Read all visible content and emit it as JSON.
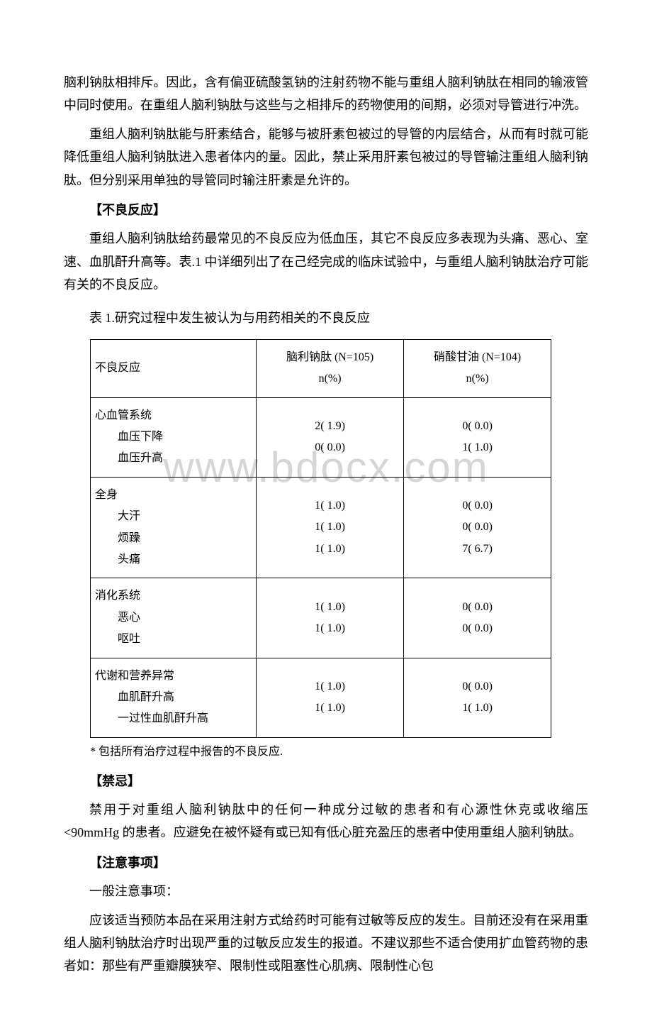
{
  "watermark": "www.bdocx.com",
  "paragraphs": {
    "p1": "脑利钠肽相排斥。因此，含有偏亚硫酸氢钠的注射药物不能与重组人脑利钠肽在相同的输液管中同时使用。在重组人脑利钠肽与这些与之相排斥的药物使用的间期，必须对导管进行冲洗。",
    "p2": "重组人脑利钠肽能与肝素结合，能够与被肝素包被过的导管的内层结合，从而有时就可能降低重组人脑利钠肽进入患者体内的量。因此，禁止采用肝素包被过的导管输注重组人脑利钠肽。但分别采用单独的导管同时输注肝素是允许的。",
    "section1_header": "【不良反应】",
    "p3": "重组人脑利钠肽给药最常见的不良反应为低血压，其它不良反应多表现为头痛、恶心、室速、血肌酐升高等。表.1 中详细列出了在己经完成的临床试验中，与重组人脑利钠肽治疗可能有关的不良反应。",
    "table_caption": "表 1.研究过程中发生被认为与用药相关的不良反应",
    "section2_header": "【禁忌】",
    "p4": "禁用于对重组人脑利钠肽中的任何一种成分过敏的患者和有心源性休克或收缩压<90mmHg 的患者。应避免在被怀疑有或已知有低心脏充盈压的患者中使用重组人脑利钠肽。",
    "section3_header": "【注意事项】",
    "p5": "一般注意事项：",
    "p6": "应该适当预防本品在采用注射方式给药时可能有过敏等反应的发生。目前还没有在采用重组人脑利钠肽治疗时出现严重的过敏反应发生的报道。不建议那些不适合使用扩血管药物的患者如：那些有严重瓣膜狭窄、限制性或阻塞性心肌病、限制性心包"
  },
  "table": {
    "columns": [
      {
        "label": "不良反应"
      },
      {
        "label_line1": "脑利钠肽 (N=105)",
        "label_line2": "n(%)"
      },
      {
        "label_line1": "硝酸甘油 (N=104)",
        "label_line2": "n(%)"
      }
    ],
    "rows": [
      {
        "label": "心血管系统\n        血压下降\n        血压升高",
        "col1": "2( 1.9)\n0( 0.0)",
        "col2": "0( 0.0)\n1( 1.0)"
      },
      {
        "label": "全身\n        大汗\n        烦躁\n        头痛",
        "col1": "1( 1.0)\n1( 1.0)\n1( 1.0)",
        "col2": "0( 0.0)\n0( 0.0)\n7( 6.7)"
      },
      {
        "label": "消化系统\n        恶心\n        呕吐",
        "col1": "1( 1.0)\n1( 1.0)",
        "col2": "0( 0.0)\n0( 0.0)"
      },
      {
        "label": "代谢和营养异常\n        血肌酐升高\n        一过性血肌酐升高",
        "col1": "1( 1.0)\n1( 1.0)",
        "col2": "0( 0.0)\n1( 1.0)"
      }
    ],
    "footnote": "* 包括所有治疗过程中报告的不良反应."
  }
}
